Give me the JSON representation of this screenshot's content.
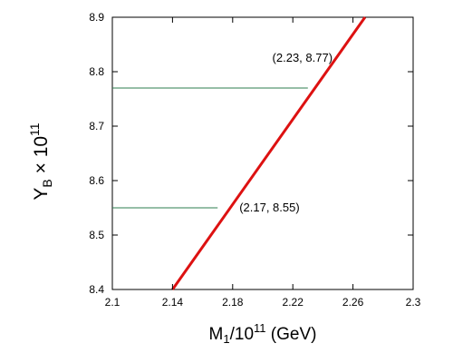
{
  "chart_data": {
    "type": "line",
    "title": "",
    "xlabel": {
      "main": "M",
      "sub": "1",
      "rest": "/10",
      "sup": "11",
      "tail": " (GeV)"
    },
    "ylabel": {
      "main": "Y",
      "sub": "B",
      "mid": " × 10",
      "sup": "11"
    },
    "xlim": [
      2.1,
      2.3
    ],
    "ylim": [
      8.4,
      8.9
    ],
    "xticks": [
      "2.1",
      "2.14",
      "2.18",
      "2.22",
      "2.26",
      "2.3"
    ],
    "yticks": [
      "8.4",
      "8.5",
      "8.6",
      "8.7",
      "8.8",
      "8.9"
    ],
    "grid": false,
    "series": [
      {
        "color": "#dd1111",
        "x": [
          2.14,
          2.268
        ],
        "y": [
          8.4,
          8.9
        ]
      }
    ],
    "reference_lines": [
      {
        "color": "#2e7d4f",
        "x": [
          2.1,
          2.23
        ],
        "y": [
          8.77,
          8.77
        ]
      },
      {
        "color": "#2e7d4f",
        "x": [
          2.1,
          2.17
        ],
        "y": [
          8.55,
          8.55
        ]
      }
    ],
    "annotations": [
      {
        "text": "(2.23, 8.77)",
        "x": 2.23,
        "y": 8.77
      },
      {
        "text": "(2.17, 8.55)",
        "x": 2.17,
        "y": 8.55
      }
    ]
  }
}
